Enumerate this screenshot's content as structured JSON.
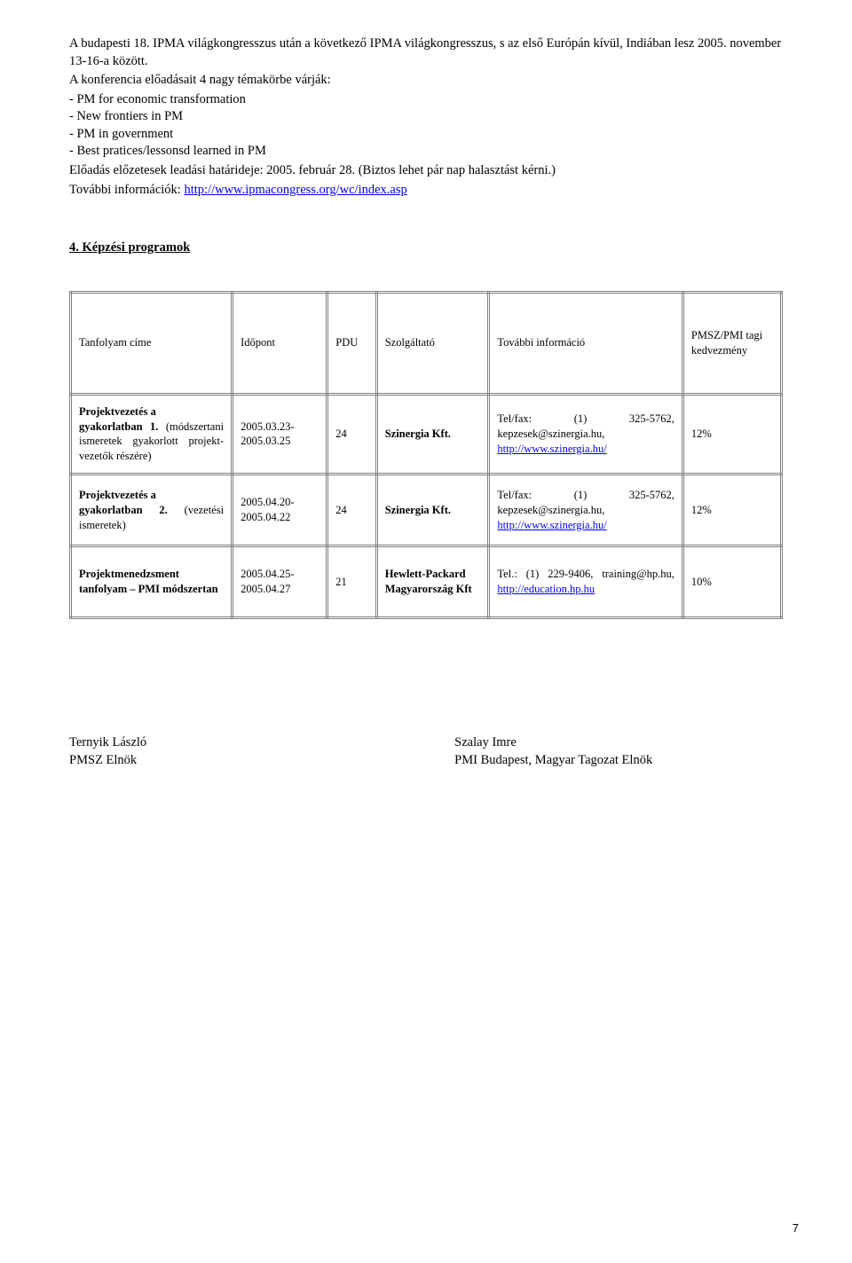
{
  "intro": {
    "p1": "A budapesti 18. IPMA világkongresszus után a következő IPMA világkongresszus, s az első Európán kívül, Indiában lesz 2005. november 13-16-a között.",
    "p2": "A konferencia előadásait 4 nagy témakörbe várják:",
    "bullets": [
      "- PM for economic transformation",
      "- New frontiers in PM",
      "- PM in government",
      "- Best pratices/lessonsd learned in PM"
    ],
    "p3a": "Előadás előzetesek leadási határideje: 2005. február 28. (Biztos lehet pár nap halasztást kérni.)",
    "p3b_prefix": "További információk: ",
    "p3b_link": "http://www.ipmacongress.org/wc/index.asp"
  },
  "section4_title": "4. Képzési programok",
  "table": {
    "headers": {
      "course": "Tanfolyam címe",
      "date": "Időpont",
      "pdu": "PDU",
      "provider": "Szolgáltató",
      "info": "További információ",
      "discount": "PMSZ/PMI tagi kedvezmény"
    },
    "rows": [
      {
        "course_bold_a": "Projektvezetés a",
        "course_bold_b": "gyakorlatban 1.",
        "course_rest": " (módszertani ismeretek gyakorlott projekt-vezetők részére)",
        "date": "2005.03.23-2005.03.25",
        "pdu": "24",
        "provider": "Szinergia Kft.",
        "info_tel": "Tel/fax: (1) 325-5762, kepzesek@szinergia.hu,",
        "info_link": "http://www.szinergia.hu/",
        "discount": "12%"
      },
      {
        "course_bold_a": "Projektvezetés a",
        "course_bold_b": "gyakorlatban 2. ",
        "course_rest": "(vezetési ismeretek)",
        "date": "2005.04.20-2005.04.22",
        "pdu": "24",
        "provider": "Szinergia Kft.",
        "info_tel": "Tel/fax: (1) 325-5762, kepzesek@szinergia.hu,",
        "info_link": "http://www.szinergia.hu/",
        "discount": "12%"
      },
      {
        "course_bold_a": "Projektmenedzsment tanfolyam – PMI módszertan",
        "course_bold_b": "",
        "course_rest": "",
        "date": "2005.04.25-2005.04.27",
        "pdu": "21",
        "provider": "Hewlett-Packard Magyarország Kft",
        "info_tel": "Tel.: (1) 229-9406, training@hp.hu,",
        "info_link": "http://education.hp.hu",
        "discount": "10%"
      }
    ]
  },
  "signers": {
    "left_name": "Ternyik László",
    "left_title": "PMSZ Elnök",
    "right_name": "Szalay Imre",
    "right_title": "PMI Budapest, Magyar Tagozat Elnök"
  },
  "page_number": "7"
}
